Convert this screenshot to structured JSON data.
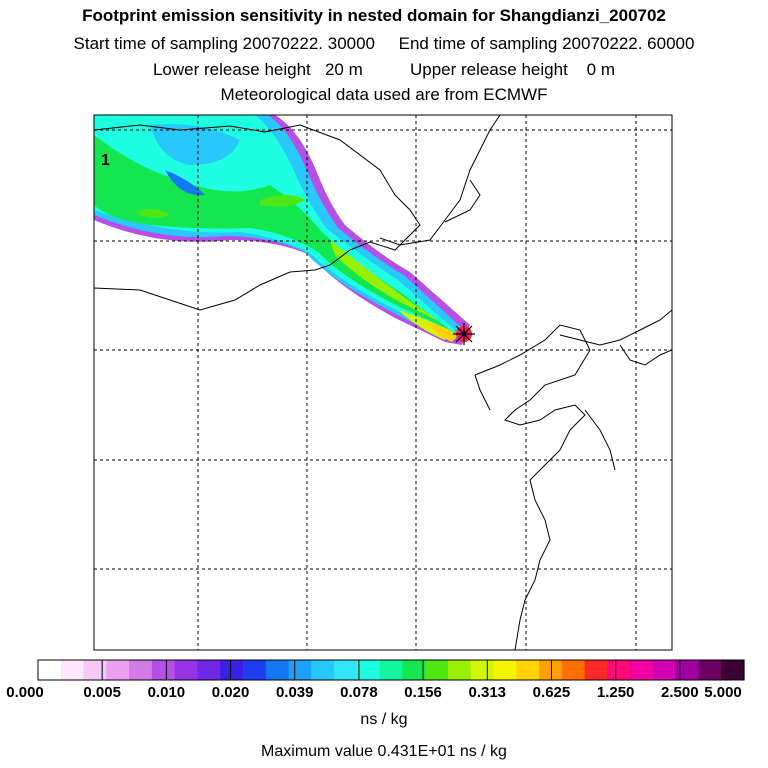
{
  "header": {
    "title": "Footprint emission sensitivity in nested domain for Shangdianzi_200702",
    "line2": "Start time of sampling 20070222. 30000     End time of sampling 20070222. 60000",
    "line3": "Lower release height   20 m          Upper release height    0 m",
    "line4": "Meteorological data used are from ECMWF"
  },
  "map": {
    "plume_label": "1",
    "grid_lines": "dashed",
    "receptor_marker": "star"
  },
  "colorbar": {
    "ticks": [
      "0.000",
      "0.005",
      "0.010",
      "0.020",
      "0.039",
      "0.078",
      "0.156",
      "0.313",
      "0.625",
      "1.250",
      "2.500",
      "5.000"
    ],
    "units": "ns / kg",
    "colors": [
      "#ffffff",
      "#ffe6ff",
      "#f5c8f5",
      "#eba0f0",
      "#d27ae6",
      "#b450e6",
      "#9632e6",
      "#6e28e6",
      "#3c1ee6",
      "#1e3cf0",
      "#1478f5",
      "#1ea0fa",
      "#28c8fa",
      "#32e6f5",
      "#1effe1",
      "#14f5a0",
      "#14e650",
      "#50e614",
      "#96f000",
      "#d2f500",
      "#f5f500",
      "#ffd200",
      "#ffa000",
      "#ff6e00",
      "#ff2828",
      "#ff0a78",
      "#f000a0",
      "#d200b4",
      "#a000a0",
      "#6e0064",
      "#3c0032"
    ]
  },
  "footer": {
    "max_value": "Maximum value  0.431E+01 ns / kg"
  }
}
